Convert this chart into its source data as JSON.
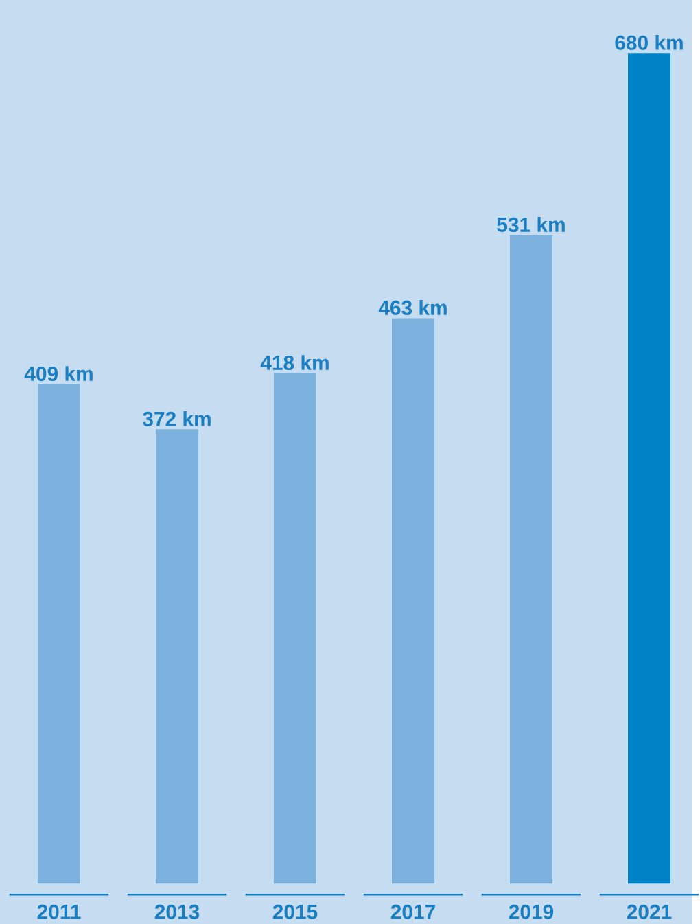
{
  "chart_data": {
    "type": "bar",
    "categories": [
      "2011",
      "2013",
      "2015",
      "2017",
      "2019",
      "2021"
    ],
    "values": [
      409,
      372,
      418,
      463,
      531,
      680
    ],
    "colors": [
      "#7cb0dd",
      "#7cb0dd",
      "#7cb0dd",
      "#7cb0dd",
      "#7cb0dd",
      "#0082c6"
    ],
    "value_labels": [
      "409 km",
      "372 km",
      "418 km",
      "463 km",
      "531 km",
      "680 km"
    ]
  }
}
